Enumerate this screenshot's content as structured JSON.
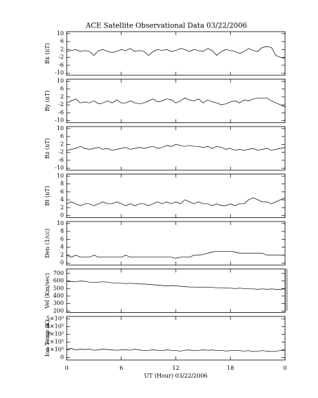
{
  "chart_data": [
    {
      "type": "line",
      "title": "ACE Satellite Observational Data   03/22/2006",
      "ylabel": "Bx (nT)",
      "x": [
        0,
        0.5,
        1,
        1.5,
        2,
        2.5,
        3,
        3.5,
        4,
        4.5,
        5,
        5.5,
        6,
        6.5,
        7,
        7.5,
        8,
        8.5,
        9,
        9.5,
        10,
        10.5,
        11,
        11.5,
        12,
        12.5,
        13,
        13.5,
        14,
        14.5,
        15,
        15.5,
        16,
        16.5,
        17,
        17.5,
        18,
        18.5,
        19,
        19.5,
        20,
        20.5,
        21,
        21.5,
        22,
        22.5,
        23,
        23.5,
        24
      ],
      "series": [
        {
          "color": "#000000",
          "values": [
            1,
            1.5,
            2,
            1,
            1.5,
            1,
            -1,
            1.5,
            2,
            1,
            0.5,
            1,
            2,
            1.5,
            2.5,
            1,
            1.5,
            1,
            -1,
            1,
            2,
            1.5,
            2,
            1,
            1.5,
            2.5,
            2,
            1,
            2,
            1.5,
            1,
            2.5,
            1.5,
            -1,
            1,
            2,
            1.5,
            1,
            0,
            1,
            2.5,
            1.5,
            1,
            3,
            3.5,
            3,
            -1,
            -2,
            -2.5
          ]
        }
      ],
      "xlim": [
        0,
        24
      ],
      "xticks": [
        0,
        6,
        12,
        18,
        {
          "value": 24,
          "label": "0"
        }
      ],
      "ylim": [
        -11,
        11
      ],
      "yticks": [
        -10,
        -6,
        -2,
        2,
        6,
        10
      ]
    },
    {
      "type": "line",
      "ylabel": "By (nT)",
      "x": [
        0,
        0.5,
        1,
        1.5,
        2,
        2.5,
        3,
        3.5,
        4,
        4.5,
        5,
        5.5,
        6,
        6.5,
        7,
        7.5,
        8,
        8.5,
        9,
        9.5,
        10,
        10.5,
        11,
        11.5,
        12,
        12.5,
        13,
        13.5,
        14,
        14.5,
        15,
        15.5,
        16,
        16.5,
        17,
        17.5,
        18,
        18.5,
        19,
        19.5,
        20,
        20.5,
        21,
        21.5,
        22,
        22.5,
        23,
        23.5,
        24
      ],
      "series": [
        {
          "color": "#000000",
          "values": [
            -1,
            0,
            1,
            -1,
            -0.5,
            -1,
            0,
            -1.5,
            -1,
            0,
            -1,
            0.5,
            -1,
            -1,
            0,
            -1,
            -1.5,
            -1,
            0,
            1,
            -0.5,
            0,
            1,
            0.5,
            -1,
            0,
            1.5,
            0.5,
            0,
            1,
            -1,
            0.5,
            -0.5,
            -1,
            -2,
            -1.5,
            -0.5,
            0,
            -1,
            0.5,
            0,
            1,
            1.5,
            1.5,
            1.5,
            0,
            -1,
            -2,
            -3
          ]
        }
      ],
      "xlim": [
        0,
        24
      ],
      "ylim": [
        -11,
        11
      ],
      "yticks": [
        -10,
        -6,
        -2,
        2,
        6,
        10
      ]
    },
    {
      "type": "line",
      "ylabel": "Bz (nT)",
      "x": [
        0,
        0.5,
        1,
        1.5,
        2,
        2.5,
        3,
        3.5,
        4,
        4.5,
        5,
        5.5,
        6,
        6.5,
        7,
        7.5,
        8,
        8.5,
        9,
        9.5,
        10,
        10.5,
        11,
        11.5,
        12,
        12.5,
        13,
        13.5,
        14,
        14.5,
        15,
        15.5,
        16,
        16.5,
        17,
        17.5,
        18,
        18.5,
        19,
        19.5,
        20,
        20.5,
        21,
        21.5,
        22,
        22.5,
        23,
        23.5,
        24
      ],
      "series": [
        {
          "color": "#000000",
          "values": [
            -1,
            -0.5,
            0,
            1,
            0,
            -0.5,
            0,
            0.5,
            -0.5,
            0,
            -1,
            -0.5,
            0,
            0.5,
            -0.5,
            0,
            0.5,
            0,
            0.5,
            1,
            0,
            0.5,
            1.5,
            1,
            2,
            1.5,
            1,
            1.5,
            1,
            1,
            0.5,
            1,
            0,
            1,
            0.5,
            -0.5,
            0,
            -1,
            -0.5,
            -1,
            -0.5,
            0,
            -1,
            -0.5,
            0,
            -1,
            -0.5,
            0,
            0.5
          ]
        }
      ],
      "xlim": [
        0,
        24
      ],
      "ylim": [
        -11,
        11
      ],
      "yticks": [
        -10,
        -6,
        -2,
        2,
        6,
        10
      ]
    },
    {
      "type": "line",
      "ylabel": "Bt (nT)",
      "x": [
        0,
        0.5,
        1,
        1.5,
        2,
        2.5,
        3,
        3.5,
        4,
        4.5,
        5,
        5.5,
        6,
        6.5,
        7,
        7.5,
        8,
        8.5,
        9,
        9.5,
        10,
        10.5,
        11,
        11.5,
        12,
        12.5,
        13,
        13.5,
        14,
        14.5,
        15,
        15.5,
        16,
        16.5,
        17,
        17.5,
        18,
        18.5,
        19,
        19.5,
        20,
        20.5,
        21,
        21.5,
        22,
        22.5,
        23,
        23.5,
        24
      ],
      "series": [
        {
          "color": "#000000",
          "values": [
            3,
            3.5,
            3,
            2.5,
            3,
            3,
            2.5,
            3,
            3.5,
            3,
            3,
            3.5,
            3,
            2.5,
            3,
            2.5,
            3,
            3,
            2.5,
            3,
            3.5,
            3,
            3.5,
            3,
            3.5,
            3,
            4,
            3.5,
            3,
            3.5,
            3,
            3,
            2.5,
            3,
            2.5,
            2.5,
            3,
            2.5,
            3,
            3,
            4,
            4.5,
            4,
            3.5,
            3.5,
            3,
            3.5,
            4,
            4.5
          ]
        }
      ],
      "xlim": [
        0,
        24
      ],
      "ylim": [
        -0.5,
        10.5
      ],
      "yticks": [
        0,
        2,
        4,
        6,
        8,
        10
      ]
    },
    {
      "type": "line",
      "ylabel": "Den (1/cc)",
      "x": [
        0,
        0.5,
        1,
        1.5,
        2,
        2.5,
        3,
        3.5,
        4,
        4.5,
        5,
        5.5,
        6,
        6.5,
        7,
        7.5,
        8,
        8.5,
        9,
        9.5,
        10,
        10.5,
        11,
        11.5,
        12,
        12.5,
        13,
        13.5,
        14,
        14.5,
        15,
        15.5,
        16,
        16.5,
        17,
        17.5,
        18,
        18.5,
        19,
        19.5,
        20,
        20.5,
        21,
        21.5,
        22,
        22.5,
        23,
        23.5,
        24
      ],
      "series": [
        {
          "color": "#000000",
          "values": [
            2,
            1.5,
            2,
            1.5,
            1.5,
            1.5,
            2,
            1.5,
            1.5,
            1.5,
            1.5,
            1.5,
            1.5,
            2,
            1.5,
            1.5,
            1.5,
            1.5,
            1.5,
            1.5,
            1.5,
            1.5,
            1.5,
            1.5,
            1.2,
            1.5,
            1.5,
            1.5,
            2,
            2,
            2.2,
            2.5,
            2.8,
            3,
            3,
            3,
            3,
            2.8,
            2.5,
            2.5,
            2.5,
            2.5,
            2.5,
            2.5,
            2,
            2,
            2,
            2,
            2
          ]
        }
      ],
      "xlim": [
        0,
        24
      ],
      "ylim": [
        -0.5,
        10.5
      ],
      "yticks": [
        0,
        2,
        4,
        6,
        8,
        10
      ]
    },
    {
      "type": "line",
      "ylabel": "Vel (Km/sec)",
      "x": [
        0,
        0.5,
        1,
        1.5,
        2,
        2.5,
        3,
        3.5,
        4,
        4.5,
        5,
        5.5,
        6,
        6.5,
        7,
        7.5,
        8,
        8.5,
        9,
        9.5,
        10,
        10.5,
        11,
        11.5,
        12,
        12.5,
        13,
        13.5,
        14,
        14.5,
        15,
        15.5,
        16,
        16.5,
        17,
        17.5,
        18,
        18.5,
        19,
        19.5,
        20,
        20.5,
        21,
        21.5,
        22,
        22.5,
        23,
        23.5,
        24
      ],
      "series": [
        {
          "color": "#000000",
          "values": [
            590,
            595,
            590,
            600,
            595,
            585,
            580,
            585,
            590,
            585,
            575,
            570,
            570,
            565,
            570,
            565,
            560,
            560,
            555,
            550,
            545,
            540,
            535,
            540,
            535,
            530,
            525,
            520,
            520,
            515,
            520,
            515,
            515,
            510,
            510,
            505,
            505,
            500,
            505,
            500,
            495,
            495,
            490,
            495,
            490,
            495,
            490,
            490,
            495
          ]
        }
      ],
      "xlim": [
        0,
        24
      ],
      "ylim": [
        180,
        760
      ],
      "yticks": [
        200,
        300,
        400,
        500,
        600,
        700
      ]
    },
    {
      "type": "line",
      "ylabel": "Ion Temp (K)",
      "xlabel": "UT (Hour)   03/22/2006",
      "x": [
        0,
        0.5,
        1,
        1.5,
        2,
        2.5,
        3,
        3.5,
        4,
        4.5,
        5,
        5.5,
        6,
        6.5,
        7,
        7.5,
        8,
        8.5,
        9,
        9.5,
        10,
        10.5,
        11,
        11.5,
        12,
        12.5,
        13,
        13.5,
        14,
        14.5,
        15,
        15.5,
        16,
        16.5,
        17,
        17.5,
        18,
        18.5,
        19,
        19.5,
        20,
        20.5,
        21,
        21.5,
        22,
        22.5,
        23,
        23.5,
        24
      ],
      "series": [
        {
          "color": "#000000",
          "values": [
            110000,
            120000,
            100000,
            110000,
            105000,
            110000,
            95000,
            100000,
            110000,
            105000,
            100000,
            95000,
            100000,
            105000,
            95000,
            110000,
            100000,
            90000,
            95000,
            100000,
            95000,
            90000,
            100000,
            95000,
            90000,
            85000,
            95000,
            100000,
            90000,
            95000,
            100000,
            95000,
            100000,
            90000,
            95000,
            85000,
            90000,
            95000,
            90000,
            85000,
            90000,
            80000,
            85000,
            90000,
            85000,
            80000,
            85000,
            90000,
            95000
          ]
        }
      ],
      "xlim": [
        0,
        24
      ],
      "xticks": [
        0,
        6,
        12,
        18,
        {
          "value": 24,
          "label": "0"
        }
      ],
      "ylim": [
        -30000,
        530000
      ],
      "yticks": [
        0,
        {
          "value": 100000,
          "label": "1×10⁵"
        },
        {
          "value": 200000,
          "label": "2×10⁵"
        },
        {
          "value": 300000,
          "label": "3×10⁵"
        },
        {
          "value": 400000,
          "label": "4×10⁵"
        },
        {
          "value": 500000,
          "label": "5×10⁵"
        }
      ]
    }
  ]
}
